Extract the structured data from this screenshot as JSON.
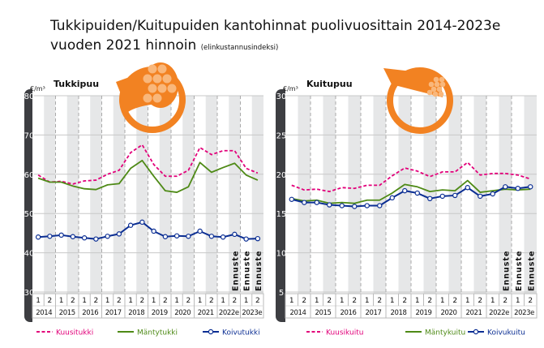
{
  "title_line1": "Tukkipuiden/Kuitupuiden kantohinnat puolivuosittain 2014-2023e",
  "title_line2": "vuoden 2021 hinnoin",
  "title_note": "(elinkustannusindeksi)",
  "chart_data": [
    {
      "type": "line",
      "title": "Tukkipuu",
      "ylabel": "€/m³",
      "ylim": [
        30,
        80
      ],
      "yticks": [
        30,
        40,
        50,
        60,
        70,
        80
      ],
      "grid": true,
      "legend_position": "bottom",
      "halves": [
        "1",
        "2",
        "1",
        "2",
        "1",
        "2",
        "1",
        "2",
        "1",
        "2",
        "1",
        "2",
        "1",
        "2",
        "1",
        "2",
        "1",
        "2",
        "1",
        "2"
      ],
      "years": [
        "2014",
        "2015",
        "2016",
        "2017",
        "2018",
        "2019",
        "2020",
        "2021",
        "2022e",
        "2023e"
      ],
      "forecast_label": "Ennuste",
      "forecast_indices": [
        17,
        18,
        19
      ],
      "series": [
        {
          "name": "Kuusitukki",
          "color": "#e2007a",
          "style": "dashed",
          "values": [
            59.8,
            58.0,
            58.2,
            57.5,
            58.3,
            58.5,
            60.0,
            61.0,
            65.5,
            67.5,
            62.5,
            59.5,
            59.5,
            61.0,
            66.8,
            65.0,
            66.0,
            66.0,
            61.5,
            60.3
          ]
        },
        {
          "name": "Mäntytukki",
          "color": "#4e8a16",
          "style": "solid",
          "values": [
            59.0,
            58.0,
            58.0,
            57.0,
            56.3,
            56.1,
            57.3,
            57.6,
            61.5,
            63.5,
            59.5,
            55.8,
            55.4,
            56.8,
            63.0,
            60.5,
            61.7,
            62.8,
            59.8,
            58.5
          ]
        },
        {
          "name": "Koivutukki",
          "color": "#0b2e93",
          "style": "markers",
          "values": [
            44.0,
            44.2,
            44.5,
            44.1,
            43.8,
            43.5,
            44.2,
            44.8,
            47.0,
            47.8,
            45.5,
            44.1,
            44.3,
            44.2,
            45.5,
            44.2,
            44.0,
            44.7,
            43.5,
            43.6
          ]
        }
      ]
    },
    {
      "type": "line",
      "title": "Kuitupuu",
      "ylabel": "€/m³",
      "ylim": [
        5,
        30
      ],
      "yticks": [
        5,
        10,
        15,
        20,
        25,
        30
      ],
      "grid": true,
      "legend_position": "bottom",
      "halves": [
        "1",
        "2",
        "1",
        "2",
        "1",
        "2",
        "1",
        "2",
        "1",
        "2",
        "1",
        "2",
        "1",
        "2",
        "1",
        "2",
        "1",
        "2",
        "1",
        "2"
      ],
      "years": [
        "2014",
        "2015",
        "2016",
        "2017",
        "2018",
        "2019",
        "2020",
        "2021",
        "2022e",
        "2023e"
      ],
      "forecast_label": "Ennuste",
      "forecast_indices": [
        17,
        18,
        19
      ],
      "series": [
        {
          "name": "Kuusikuitu",
          "color": "#e2007a",
          "style": "dashed",
          "values": [
            18.6,
            18.0,
            18.1,
            17.8,
            18.3,
            18.2,
            18.6,
            18.6,
            19.8,
            20.8,
            20.4,
            19.7,
            20.3,
            20.3,
            21.5,
            19.9,
            20.1,
            20.1,
            19.9,
            19.4
          ]
        },
        {
          "name": "Mäntykuitu",
          "color": "#4e8a16",
          "style": "solid",
          "values": [
            16.9,
            16.6,
            16.7,
            16.3,
            16.4,
            16.3,
            16.7,
            16.7,
            17.6,
            18.7,
            18.4,
            17.8,
            18.0,
            17.9,
            19.2,
            17.7,
            17.9,
            18.1,
            18.0,
            18.1
          ]
        },
        {
          "name": "Koivukuitu",
          "color": "#0b2e93",
          "style": "markers",
          "values": [
            16.8,
            16.4,
            16.4,
            16.1,
            16.0,
            15.9,
            16.0,
            16.0,
            17.0,
            17.9,
            17.6,
            16.9,
            17.2,
            17.3,
            18.3,
            17.2,
            17.5,
            18.4,
            18.2,
            18.4
          ]
        }
      ]
    }
  ],
  "colors": {
    "axis_bar": "#3d3e42",
    "band": "#e6e7e8",
    "icon": "#f28222",
    "icon_light": "#f9b77b"
  }
}
